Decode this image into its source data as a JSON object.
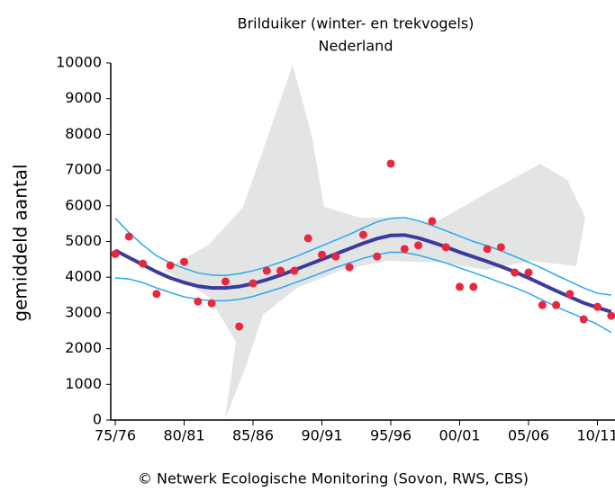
{
  "chart_data": {
    "type": "line",
    "title": "Brilduiker (winter- en trekvogels)",
    "subtitle": "Nederland",
    "y_label": "gemiddeld aantal",
    "source": "© Netwerk Ecologische Monitoring (Sovon, RWS, CBS)",
    "categories": [
      "75/76",
      null,
      null,
      null,
      null,
      "80/81",
      null,
      null,
      null,
      null,
      "85/86",
      null,
      null,
      null,
      null,
      "90/91",
      null,
      null,
      null,
      null,
      "95/96",
      null,
      null,
      null,
      null,
      "00/01",
      null,
      null,
      null,
      null,
      "05/06",
      null,
      null,
      null,
      null,
      "10/11",
      null
    ],
    "ylim": [
      0,
      10000
    ],
    "yticks": [
      0,
      1000,
      2000,
      3000,
      4000,
      5000,
      6000,
      7000,
      8000,
      9000,
      10000
    ],
    "series": [
      {
        "type": "line",
        "color": "#27a9ef",
        "values": [
          5650,
          5250,
          4900,
          4600,
          4400,
          4250,
          4120,
          4060,
          4050,
          4100,
          4180,
          4290,
          4420,
          4560,
          4720,
          4880,
          5040,
          5200,
          5380,
          5550,
          5650,
          5670,
          5580,
          5450,
          5300,
          5150,
          5000,
          4880,
          4740,
          4580,
          4420,
          4250,
          4060,
          3880,
          3700,
          3550,
          3500
        ]
      },
      {
        "type": "line",
        "color": "#27a9ef",
        "values": [
          3980,
          3950,
          3850,
          3700,
          3570,
          3450,
          3380,
          3340,
          3340,
          3380,
          3460,
          3580,
          3700,
          3840,
          3980,
          4130,
          4270,
          4400,
          4530,
          4630,
          4700,
          4690,
          4620,
          4510,
          4400,
          4260,
          4130,
          3990,
          3850,
          3710,
          3550,
          3360,
          3180,
          3010,
          2850,
          2680,
          2450
        ]
      },
      {
        "type": "line",
        "color": "#3b3b9e",
        "values": [
          4750,
          4550,
          4350,
          4150,
          3980,
          3850,
          3750,
          3700,
          3700,
          3740,
          3820,
          3930,
          4060,
          4200,
          4350,
          4500,
          4650,
          4800,
          4950,
          5080,
          5170,
          5180,
          5100,
          4980,
          4850,
          4700,
          4570,
          4440,
          4300,
          4150,
          3980,
          3800,
          3620,
          3450,
          3280,
          3150,
          3030
        ]
      },
      {
        "type": "scatter",
        "color": "#e8283c",
        "values": [
          4650,
          5140,
          4380,
          3530,
          4330,
          4430,
          3320,
          3270,
          3880,
          2620,
          3830,
          4180,
          4180,
          4180,
          5090,
          4630,
          4580,
          4280,
          5190,
          4580,
          7180,
          4790,
          4890,
          5570,
          4840,
          3730,
          3730,
          4790,
          4840,
          4130,
          4130,
          3220,
          3220,
          3530,
          2820,
          3170,
          2920
        ]
      }
    ]
  }
}
